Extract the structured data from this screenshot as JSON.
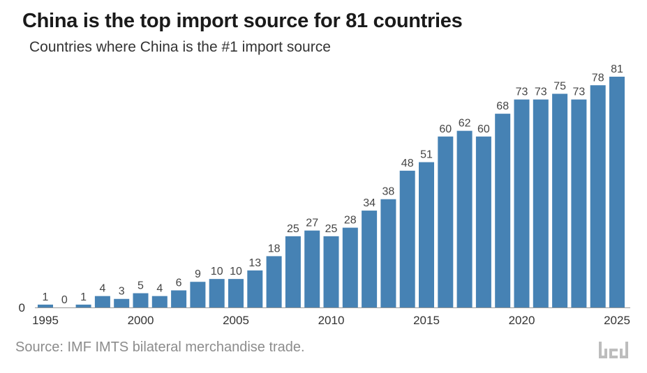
{
  "header": {
    "title": "China is the top import source for 81 countries",
    "subtitle": "Countries where China is the #1 import source"
  },
  "footer": {
    "source": "Source: IMF IMTS bilateral merchandise trade."
  },
  "colors": {
    "bar": "#4682b4",
    "axis": "#999999",
    "label": "#444444"
  },
  "chart_data": {
    "type": "bar",
    "title": "China is the top import source for 81 countries",
    "subtitle": "Countries where China is the #1 import source",
    "xlabel": "",
    "ylabel": "",
    "categories": [
      1995,
      1996,
      1997,
      1998,
      1999,
      2000,
      2001,
      2002,
      2003,
      2004,
      2005,
      2006,
      2007,
      2008,
      2009,
      2010,
      2011,
      2012,
      2013,
      2014,
      2015,
      2016,
      2017,
      2018,
      2019,
      2020,
      2021,
      2022,
      2023,
      2024,
      2025
    ],
    "values": [
      1,
      0,
      1,
      4,
      3,
      5,
      4,
      6,
      9,
      10,
      10,
      13,
      18,
      25,
      27,
      25,
      28,
      34,
      38,
      48,
      51,
      60,
      62,
      60,
      68,
      73,
      73,
      75,
      73,
      78,
      81
    ],
    "x_ticks": [
      "1995",
      "2000",
      "2005",
      "2010",
      "2015",
      "2020",
      "2025"
    ],
    "y_ticks": [
      "0"
    ],
    "ylim": [
      0,
      81
    ],
    "grid": false,
    "legend": "none",
    "data_labels": true
  }
}
